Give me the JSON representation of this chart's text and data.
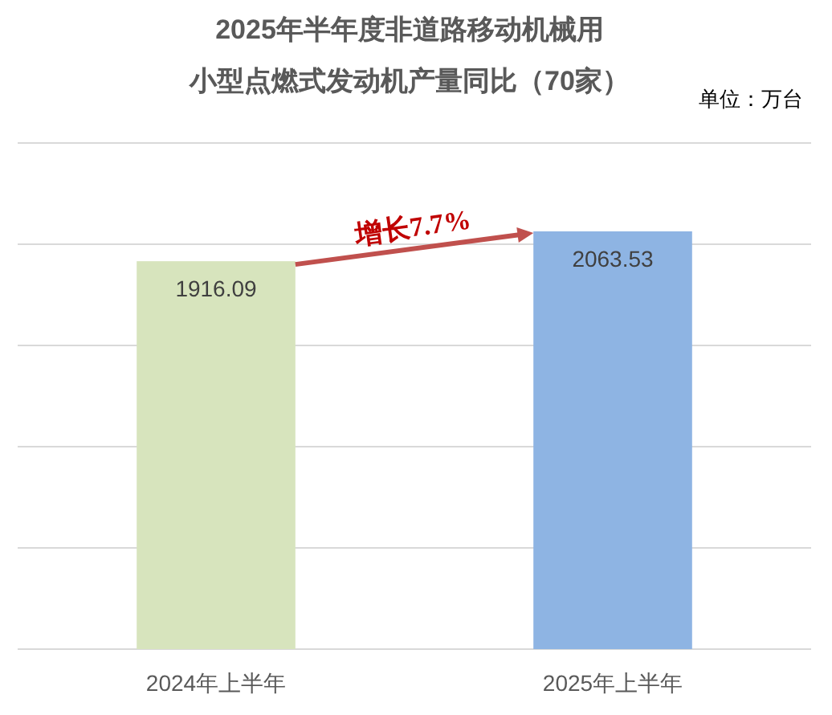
{
  "chart_data": {
    "type": "bar",
    "title": "2025年半年度非道路移动机械用",
    "subtitle": "小型点燃式发动机产量同比（70家）",
    "categories": [
      "2024年上半年",
      "2025年上半年"
    ],
    "values": [
      1916.09,
      2063.53
    ],
    "colors": [
      "#d7e4bd",
      "#8eb4e3"
    ],
    "ylim": [
      0,
      2500
    ],
    "yticks": [
      {
        "value": 0,
        "label": null
      },
      {
        "value": 500,
        "label": null
      },
      {
        "value": 1000,
        "label": null
      },
      {
        "value": 1500,
        "label": null
      },
      {
        "value": 2000,
        "label": null
      },
      {
        "value": 2500,
        "label": null
      }
    ],
    "tick_labels": "x",
    "grid": "y",
    "data_labels": true,
    "annotations": [
      "增长7.7%",
      "单位：万台"
    ]
  }
}
